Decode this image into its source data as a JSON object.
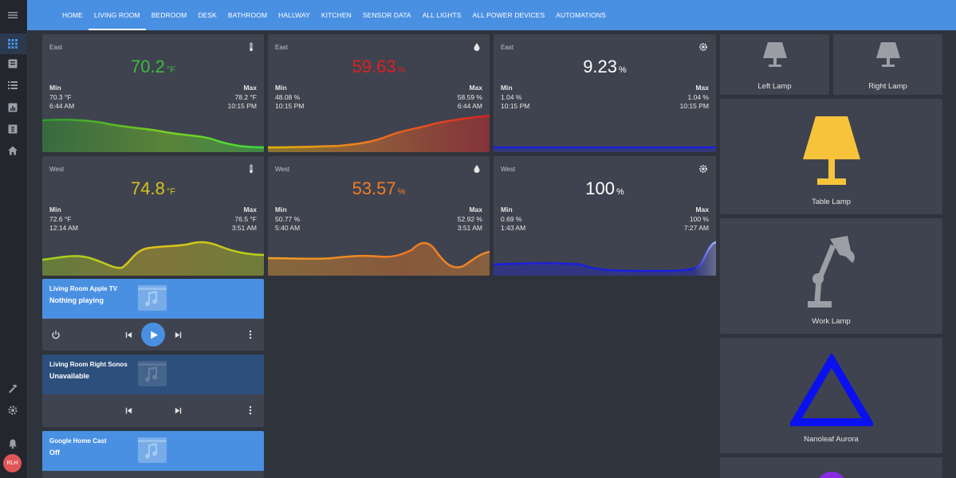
{
  "sidebar": {
    "icons": [
      "dashboard-icon",
      "logbook-icon",
      "list-icon",
      "history-icon",
      "map-icon",
      "home-icon",
      "hammer-icon",
      "settings-icon",
      "bell-icon"
    ],
    "user_initials": "RLH"
  },
  "header": {
    "tabs": [
      {
        "label": "HOME",
        "active": false
      },
      {
        "label": "LIVING ROOM",
        "active": true
      },
      {
        "label": "BEDROOM",
        "active": false
      },
      {
        "label": "DESK",
        "active": false
      },
      {
        "label": "BATHROOM",
        "active": false
      },
      {
        "label": "HALLWAY",
        "active": false
      },
      {
        "label": "KITCHEN",
        "active": false
      },
      {
        "label": "SENSOR DATA",
        "active": false
      },
      {
        "label": "ALL LIGHTS",
        "active": false
      },
      {
        "label": "ALL POWER DEVICES",
        "active": false
      },
      {
        "label": "AUTOMATIONS",
        "active": false
      }
    ]
  },
  "sensors": [
    {
      "name": "East",
      "icon": "thermometer-icon",
      "value": "70.2",
      "unit": "°F",
      "color": "#3dbb3d",
      "min_label": "Min",
      "min": "70.3 °F",
      "min_time": "6:44 AM",
      "max_label": "Max",
      "max": "78.2 °F",
      "max_time": "10:15 PM"
    },
    {
      "name": "East",
      "icon": "water-drop-icon",
      "value": "59.63",
      "unit": "%",
      "color": "#e02020",
      "min_label": "Min",
      "min": "48.08 %",
      "min_time": "10:15 PM",
      "max_label": "Max",
      "max": "58.59 %",
      "max_time": "6:44 AM"
    },
    {
      "name": "East",
      "icon": "gear-icon",
      "value": "9.23",
      "unit": "%",
      "color": "#ffffff",
      "min_label": "Min",
      "min": "1.04 %",
      "min_time": "10:15 PM",
      "max_label": "Max",
      "max": "1.04 %",
      "max_time": "10:15 PM"
    },
    {
      "name": "West",
      "icon": "thermometer-icon",
      "value": "74.8",
      "unit": "°F",
      "color": "#d6c21d",
      "min_label": "Min",
      "min": "72.6 °F",
      "min_time": "12:14 AM",
      "max_label": "Max",
      "max": "76.5 °F",
      "max_time": "3:51 AM"
    },
    {
      "name": "West",
      "icon": "water-drop-icon",
      "value": "53.57",
      "unit": "%",
      "color": "#ef7d26",
      "min_label": "Min",
      "min": "50.77 %",
      "min_time": "5:40 AM",
      "max_label": "Max",
      "max": "52.92 %",
      "max_time": "3:51 AM"
    },
    {
      "name": "West",
      "icon": "gear-icon",
      "value": "100",
      "unit": "%",
      "color": "#ffffff",
      "min_label": "Min",
      "min": "0.69 %",
      "min_time": "1:43 AM",
      "max_label": "Max",
      "max": "100 %",
      "max_time": "7:27 AM"
    }
  ],
  "media": [
    {
      "title": "Living Room Apple TV",
      "state": "Nothing playing",
      "bg": "#4a90e2"
    },
    {
      "title": "Living Room Right Sonos",
      "state": "Unavailable",
      "bg": "#2c4f7c"
    },
    {
      "title": "Google Home Cast",
      "state": "Off",
      "bg": "#4a90e2"
    }
  ],
  "lights": [
    {
      "name": "Left Lamp",
      "icon": "lamp-icon",
      "color": "#9b9ea4"
    },
    {
      "name": "Right Lamp",
      "icon": "lamp-icon",
      "color": "#9b9ea4"
    },
    {
      "name": "Table Lamp",
      "icon": "lamp-icon",
      "color": "#f6c33b"
    },
    {
      "name": "Work Lamp",
      "icon": "desk-lamp-icon",
      "color": "#9b9ea4"
    },
    {
      "name": "Nanoleaf Aurora",
      "icon": "triangle-icon",
      "color": "#0a10f0"
    }
  ],
  "colors": {
    "header": "#4a90e2",
    "card": "#3f434f",
    "background": "#2f333c"
  }
}
